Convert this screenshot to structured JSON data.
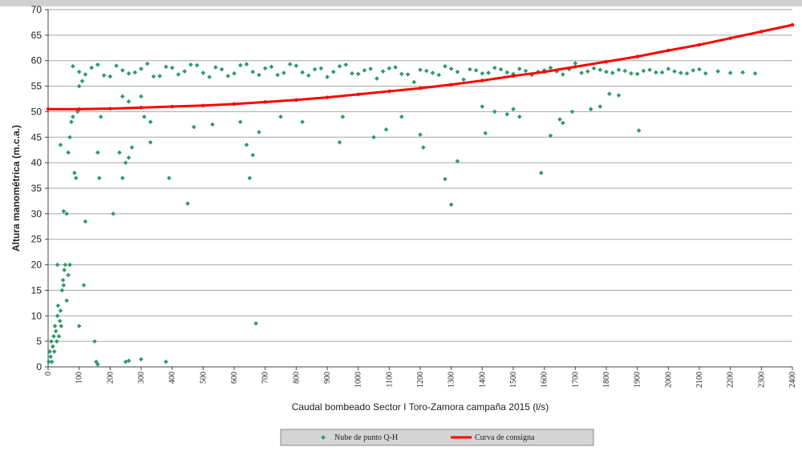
{
  "chart_data": {
    "type": "scatter",
    "ylabel": "Altura manométrica (m.c.a.)",
    "xlabel": "Caudal bombeado Sector I Toro-Zamora campaña 2015 (l/s)",
    "xlim": [
      0,
      2400
    ],
    "ylim": [
      0,
      70
    ],
    "xticks": [
      0,
      100,
      200,
      300,
      400,
      500,
      600,
      700,
      800,
      900,
      1000,
      1100,
      1200,
      1300,
      1400,
      1500,
      1600,
      1700,
      1800,
      1900,
      2000,
      2100,
      2200,
      2300,
      2400
    ],
    "yticks": [
      0,
      5,
      10,
      15,
      20,
      25,
      30,
      35,
      40,
      45,
      50,
      55,
      60,
      65,
      70
    ],
    "grid": true,
    "legend": "bottom",
    "series": [
      {
        "name": "Nube de punto Q-H",
        "type": "scatter",
        "color": "#2e9a6a",
        "x": [
          2,
          5,
          8,
          10,
          12,
          15,
          18,
          20,
          22,
          25,
          28,
          30,
          32,
          35,
          38,
          40,
          42,
          45,
          48,
          50,
          52,
          55,
          60,
          65,
          70,
          30,
          40,
          50,
          60,
          65,
          70,
          75,
          80,
          85,
          90,
          95,
          100,
          110,
          115,
          120,
          100,
          150,
          155,
          160,
          250,
          260,
          300,
          380,
          165,
          160,
          170,
          210,
          230,
          240,
          250,
          260,
          270,
          240,
          260,
          300,
          310,
          330,
          330,
          390,
          450,
          470,
          530,
          620,
          640,
          650,
          660,
          670,
          680,
          750,
          820,
          940,
          950,
          1050,
          1090,
          1140,
          1200,
          1210,
          1280,
          1300,
          1320,
          1410,
          1400,
          1440,
          1480,
          1500,
          1520,
          1590,
          1620,
          1650,
          1660,
          1690,
          1750,
          1780,
          1810,
          1840,
          1905,
          80,
          120,
          160,
          200,
          240,
          280,
          320,
          360,
          400,
          440,
          480,
          520,
          560,
          600,
          640,
          680,
          720,
          760,
          800,
          840,
          880,
          920,
          960,
          1000,
          1040,
          1080,
          1120,
          1160,
          1200,
          1240,
          1280,
          1320,
          1360,
          1400,
          1440,
          1480,
          1520,
          1560,
          1600,
          1640,
          1680,
          1720,
          1760,
          1800,
          1840,
          1880,
          1920,
          1960,
          2000,
          2040,
          2080,
          2120,
          2160,
          2200,
          2240,
          2280,
          100,
          140,
          180,
          220,
          260,
          300,
          340,
          380,
          420,
          460,
          500,
          540,
          580,
          620,
          660,
          700,
          740,
          780,
          820,
          860,
          900,
          940,
          980,
          1020,
          1060,
          1100,
          1140,
          1180,
          1220,
          1260,
          1300,
          1340,
          1380,
          1420,
          1460,
          1500,
          1540,
          1580,
          1620,
          1660,
          1700,
          1740,
          1780,
          1820,
          1860,
          1900,
          1940,
          1980,
          2020,
          2060,
          2100
        ],
        "values": [
          1,
          3,
          2,
          5,
          1,
          4,
          6,
          3,
          8,
          7,
          5,
          10,
          12,
          6,
          9,
          11,
          8,
          15,
          17,
          16,
          19,
          20,
          13,
          18,
          20,
          20,
          43.5,
          30.5,
          30,
          42,
          45,
          48,
          49,
          38,
          37,
          50,
          55,
          56,
          16,
          28.5,
          8,
          5,
          1,
          0.5,
          1,
          1.2,
          1.5,
          1,
          37,
          42,
          49,
          30,
          42,
          37,
          40,
          41,
          43,
          53,
          52,
          53,
          49,
          44,
          48,
          37,
          32,
          47,
          47.5,
          48,
          43.5,
          37,
          41.5,
          8.5,
          46,
          49,
          48,
          44,
          49,
          45,
          46.5,
          49,
          45.5,
          43,
          36.8,
          31.8,
          40.3,
          45.8,
          51,
          50,
          49.5,
          50.5,
          49,
          38,
          45.3,
          48.5,
          47.8,
          50,
          50.5,
          51,
          53.5,
          53.2,
          46.3,
          58.9,
          57.3,
          59.2,
          56.9,
          58.1,
          57.7,
          59.4,
          57.0,
          58.6,
          57.9,
          59.1,
          56.8,
          58.3,
          57.5,
          59.3,
          57.2,
          58.8,
          57.6,
          59.0,
          57.1,
          58.5,
          57.8,
          59.2,
          57.4,
          58.4,
          57.9,
          58.7,
          57.3,
          58.2,
          57.6,
          58.9,
          57.8,
          58.3,
          57.5,
          58.6,
          57.7,
          58.4,
          57.2,
          58.1,
          57.9,
          58.3,
          57.6,
          58.5,
          57.8,
          58.2,
          57.5,
          58.0,
          57.7,
          58.4,
          57.6,
          58.1,
          57.5,
          57.9,
          57.6,
          57.7,
          57.5,
          57.8,
          58.6,
          57.1,
          59.0,
          57.5,
          58.4,
          56.9,
          58.8,
          57.3,
          59.2,
          57.6,
          58.7,
          57.0,
          59.1,
          57.8,
          58.5,
          57.2,
          59.3,
          57.7,
          58.3,
          56.8,
          58.9,
          57.5,
          58.1,
          56.5,
          58.5,
          57.4,
          55.8,
          58.0,
          57.2,
          58.4,
          56.3,
          58.1,
          57.6,
          58.3,
          57.4,
          58.0,
          57.8,
          58.6,
          57.3,
          59.5,
          57.9,
          58.2,
          57.6,
          58.0,
          57.4,
          58.2,
          57.7,
          57.9,
          57.5,
          58.3
        ]
      },
      {
        "name": "Curva de consigna",
        "type": "line",
        "color": "#ff0000",
        "x": [
          0,
          100,
          200,
          300,
          400,
          500,
          600,
          700,
          800,
          900,
          1000,
          1100,
          1200,
          1300,
          1400,
          1500,
          1600,
          1700,
          1800,
          1900,
          2000,
          2100,
          2200,
          2300,
          2400
        ],
        "values": [
          50.5,
          50.5,
          50.6,
          50.8,
          51.0,
          51.2,
          51.5,
          51.9,
          52.3,
          52.8,
          53.4,
          54.0,
          54.6,
          55.3,
          56.1,
          57.0,
          57.8,
          58.8,
          59.8,
          60.8,
          62.0,
          63.1,
          64.4,
          65.7,
          67.0
        ]
      }
    ]
  }
}
